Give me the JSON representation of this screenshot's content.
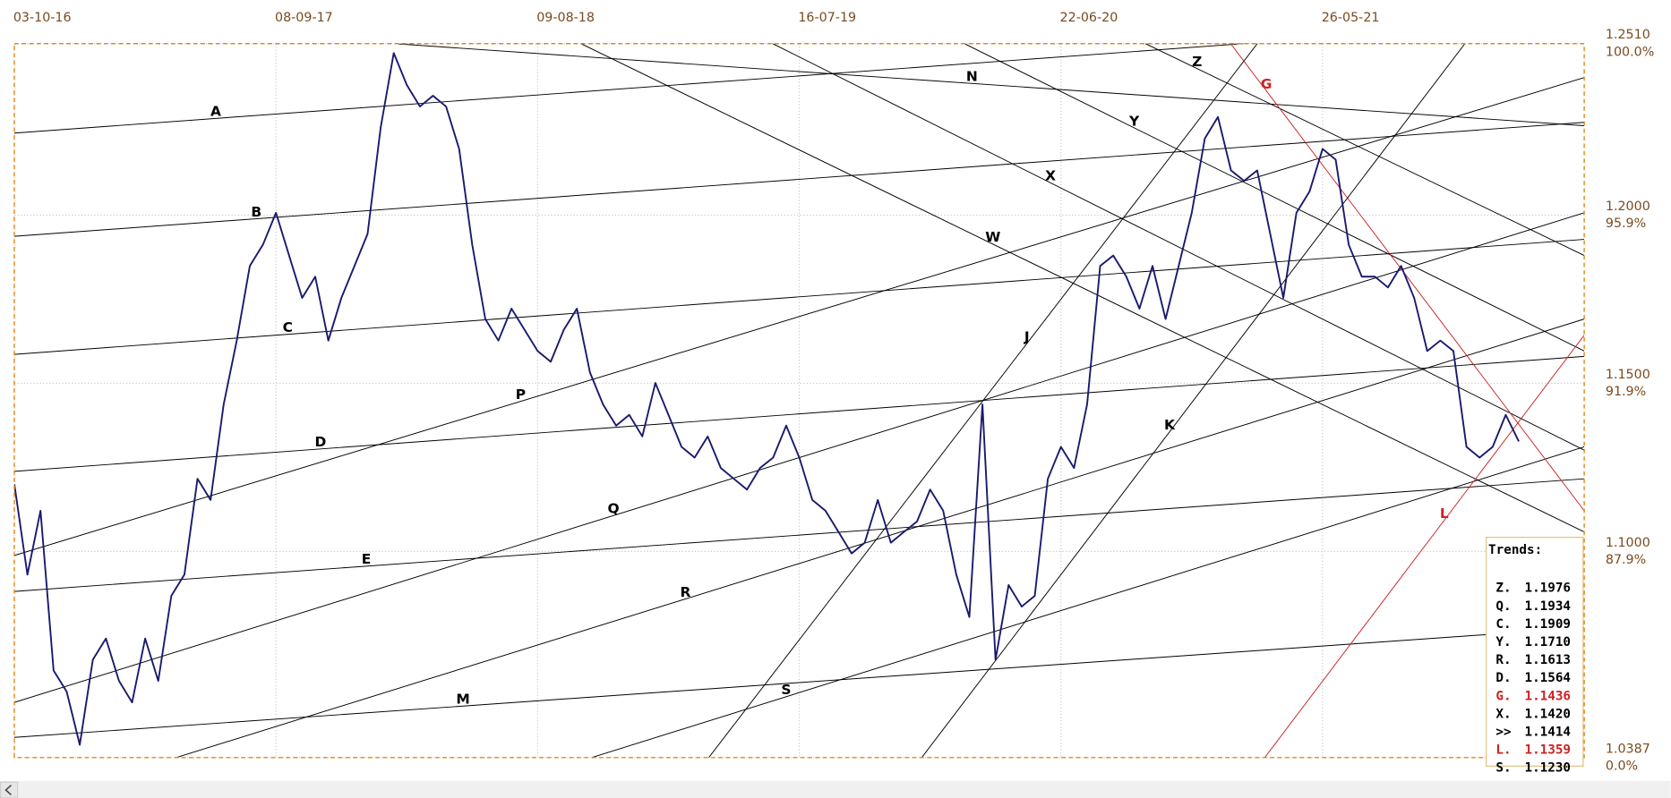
{
  "chart_data": {
    "type": "line",
    "categories": [
      "03-10-16",
      null,
      null,
      null,
      null,
      null,
      null,
      null,
      null,
      null,
      null,
      null,
      null,
      null,
      null,
      null,
      null,
      null,
      null,
      null,
      "08-09-17",
      null,
      null,
      null,
      null,
      null,
      null,
      null,
      null,
      null,
      null,
      null,
      null,
      null,
      null,
      null,
      null,
      null,
      null,
      null,
      "09-08-18",
      null,
      null,
      null,
      null,
      null,
      null,
      null,
      null,
      null,
      null,
      null,
      null,
      null,
      null,
      null,
      null,
      null,
      null,
      null,
      "16-07-19",
      null,
      null,
      null,
      null,
      null,
      null,
      null,
      null,
      null,
      null,
      null,
      null,
      null,
      null,
      null,
      null,
      null,
      null,
      null,
      "22-06-20",
      null,
      null,
      null,
      null,
      null,
      null,
      null,
      null,
      null,
      null,
      null,
      null,
      null,
      null,
      null,
      null,
      null,
      null,
      null,
      "26-05-21",
      null,
      null,
      null,
      null,
      null,
      null,
      null,
      null,
      null,
      null,
      null,
      null,
      null,
      null,
      null,
      null,
      null,
      null,
      null,
      null
    ],
    "series": [
      {
        "color": "#1a1a6e",
        "values": [
          1.12,
          1.0931,
          1.1121,
          1.0646,
          1.0583,
          1.0425,
          1.0678,
          1.0741,
          1.0615,
          1.0551,
          1.0741,
          1.0615,
          1.0868,
          1.0931,
          1.1216,
          1.1153,
          1.1437,
          1.1627,
          1.1849,
          1.1912,
          1.2007,
          1.188,
          1.1754,
          1.1817,
          1.1627,
          1.1754,
          1.1849,
          1.1944,
          1.226,
          1.2482,
          1.2387,
          1.2323,
          1.2355,
          1.2323,
          1.2197,
          1.1912,
          1.1691,
          1.1627,
          1.1722,
          1.1659,
          1.1596,
          1.1564,
          1.1659,
          1.1722,
          1.1532,
          1.1437,
          1.1374,
          1.1406,
          1.1342,
          1.1501,
          1.1406,
          1.1311,
          1.1279,
          1.1342,
          1.1248,
          1.1216,
          1.1184,
          1.1248,
          1.1279,
          1.1374,
          1.1279,
          1.1153,
          1.1121,
          1.1058,
          1.0994,
          1.1026,
          1.1153,
          1.1026,
          1.1058,
          1.1089,
          1.1184,
          1.1121,
          1.0931,
          1.0805,
          1.1437,
          1.0678,
          1.09,
          1.0836,
          1.0868,
          1.1216,
          1.1311,
          1.1248,
          1.1437,
          1.1849,
          1.188,
          1.1817,
          1.1722,
          1.1849,
          1.1691,
          1.1849,
          1.2007,
          1.2228,
          1.2292,
          1.2133,
          1.2102,
          1.2133,
          1.1944,
          1.1754,
          1.2007,
          1.207,
          1.2197,
          1.2165,
          1.1912,
          1.1817,
          1.1817,
          1.1785,
          1.1849,
          1.1754,
          1.1596,
          1.1627,
          1.1596,
          1.1311,
          1.1279,
          1.1311,
          1.1406,
          1.1327,
          null,
          null,
          null,
          null,
          null
        ]
      }
    ],
    "ylim": [
      1.0387,
      1.251
    ],
    "yticks": [
      {
        "value": 1.251,
        "label": "1.2510"
      },
      {
        "value": 1.2,
        "label": "1.2000"
      },
      {
        "value": 1.15,
        "label": "1.1500"
      },
      {
        "value": 1.1,
        "label": "1.1000"
      },
      1.0387
    ],
    "ytick_percent_labels": [
      "100.0%",
      "95.9%",
      "91.9%",
      "87.9%",
      "0.0%"
    ],
    "grid": true,
    "trendlines": [
      {
        "name": "A",
        "color": "#000000",
        "from": [
          0,
          1.2244
        ],
        "to": [
          95,
          1.2513
        ]
      },
      {
        "name": "B",
        "color": "#000000",
        "from": [
          0,
          1.1937
        ],
        "to": [
          120,
          1.2276
        ]
      },
      {
        "name": "C",
        "color": "#000000",
        "from": [
          0,
          1.1586
        ],
        "to": [
          120,
          1.1928
        ]
      },
      {
        "name": "D",
        "color": "#000000",
        "from": [
          0,
          1.1238
        ],
        "to": [
          120,
          1.158
        ]
      },
      {
        "name": "E",
        "color": "#000000",
        "from": [
          0,
          1.0881
        ],
        "to": [
          120,
          1.1216
        ]
      },
      {
        "name": "M",
        "color": "#000000",
        "from": [
          0,
          1.0447
        ],
        "to": [
          120,
          1.0773
        ]
      },
      {
        "name": "P",
        "color": "#000000",
        "from": [
          0,
          1.0988
        ],
        "to": [
          120,
          1.2409
        ]
      },
      {
        "name": "Q",
        "color": "#000000",
        "from": [
          0,
          1.0551
        ],
        "to": [
          120,
          1.2007
        ]
      },
      {
        "name": "R",
        "color": "#000000",
        "from": [
          12.37,
          1.0387
        ],
        "to": [
          120,
          1.1691
        ]
      },
      {
        "name": "S",
        "color": "#000000",
        "from": [
          44.13,
          1.0387
        ],
        "to": [
          120,
          1.1311
        ]
      },
      {
        "name": "N",
        "color": "#000000",
        "from": [
          29.06,
          1.251
        ],
        "to": [
          120,
          1.2266
        ]
      },
      {
        "name": "W",
        "color": "#000000",
        "from": [
          43.31,
          1.251
        ],
        "to": [
          120,
          1.1058
        ]
      },
      {
        "name": "X",
        "color": "#000000",
        "from": [
          57.97,
          1.251
        ],
        "to": [
          120,
          1.1301
        ]
      },
      {
        "name": "Y",
        "color": "#000000",
        "from": [
          72.62,
          1.251
        ],
        "to": [
          120,
          1.1596
        ]
      },
      {
        "name": "Z",
        "color": "#000000",
        "from": [
          86.46,
          1.251
        ],
        "to": [
          120,
          1.188
        ]
      },
      {
        "name": "G",
        "color": "#cc2222",
        "from": [
          92.97,
          1.251
        ],
        "to": [
          120,
          1.1121
        ]
      },
      {
        "name": "L",
        "color": "#cc2222",
        "from": [
          95.58,
          1.0387
        ],
        "to": [
          120,
          1.1643
        ]
      },
      {
        "name": "J",
        "color": "#000000",
        "from": [
          53.08,
          1.0387
        ],
        "to": [
          95.01,
          1.251
        ]
      },
      {
        "name": "K",
        "color": "#000000",
        "from": [
          69.36,
          1.0387
        ],
        "to": [
          110.88,
          1.251
        ]
      }
    ],
    "trends_table": {
      "title": "Trends:",
      "rows": [
        {
          "label": "Z.",
          "value": "1.1976",
          "color": "#000000"
        },
        {
          "label": "Q.",
          "value": "1.1934",
          "color": "#000000"
        },
        {
          "label": "C.",
          "value": "1.1909",
          "color": "#000000"
        },
        {
          "label": "Y.",
          "value": "1.1710",
          "color": "#000000"
        },
        {
          "label": "R.",
          "value": "1.1613",
          "color": "#000000"
        },
        {
          "label": "D.",
          "value": "1.1564",
          "color": "#000000"
        },
        {
          "label": "G.",
          "value": "1.1436",
          "color": "#cc2222"
        },
        {
          "label": "X.",
          "value": "1.1420",
          "color": "#000000"
        },
        {
          "label": ">>",
          "value": "1.1414",
          "color": "#000000"
        },
        {
          "label": "L.",
          "value": "1.1359",
          "color": "#cc2222"
        },
        {
          "label": "S.",
          "value": "1.1230",
          "color": "#000000"
        }
      ]
    }
  }
}
